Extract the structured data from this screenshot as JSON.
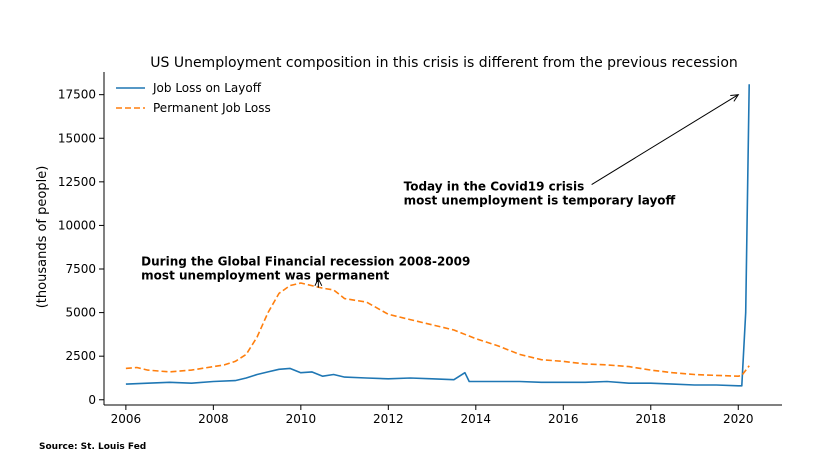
{
  "chart_data": {
    "type": "line",
    "title": "US Unemployment composition in this crisis is different from the previous recession",
    "xlabel": "",
    "ylabel": "(thousands of people)",
    "xlim": [
      2005.5,
      2021.0
    ],
    "ylim": [
      -300,
      18800
    ],
    "xticks": [
      "2006",
      "2008",
      "2010",
      "2012",
      "2014",
      "2016",
      "2018",
      "2020"
    ],
    "yticks": [
      "0",
      "2500",
      "5000",
      "7500",
      "10000",
      "12500",
      "15000",
      "17500"
    ],
    "legend_position": "top-left",
    "series": [
      {
        "name": "Job Loss on Layoff",
        "color": "#1f77b4",
        "style": "solid",
        "x": [
          2006.0,
          2006.5,
          2007.0,
          2007.5,
          2008.0,
          2008.5,
          2008.75,
          2009.0,
          2009.25,
          2009.5,
          2009.75,
          2010.0,
          2010.25,
          2010.5,
          2010.75,
          2011.0,
          2011.5,
          2012.0,
          2012.5,
          2013.0,
          2013.5,
          2013.75,
          2013.85,
          2014.0,
          2014.5,
          2015.0,
          2015.5,
          2016.0,
          2016.5,
          2017.0,
          2017.5,
          2018.0,
          2018.5,
          2019.0,
          2019.5,
          2020.0,
          2020.08,
          2020.17,
          2020.25
        ],
        "y": [
          900,
          950,
          1000,
          950,
          1050,
          1100,
          1250,
          1450,
          1600,
          1750,
          1800,
          1550,
          1600,
          1350,
          1450,
          1300,
          1250,
          1200,
          1250,
          1200,
          1150,
          1550,
          1050,
          1050,
          1050,
          1050,
          1000,
          1000,
          1000,
          1050,
          950,
          950,
          900,
          850,
          850,
          800,
          800,
          5000,
          18100
        ]
      },
      {
        "name": "Permanent Job Loss",
        "color": "#ff7f0e",
        "style": "dashed",
        "x": [
          2006.0,
          2006.25,
          2006.5,
          2007.0,
          2007.5,
          2008.0,
          2008.25,
          2008.5,
          2008.75,
          2009.0,
          2009.25,
          2009.5,
          2009.75,
          2010.0,
          2010.25,
          2010.5,
          2010.75,
          2011.0,
          2011.5,
          2012.0,
          2012.5,
          2013.0,
          2013.5,
          2014.0,
          2014.5,
          2015.0,
          2015.5,
          2016.0,
          2016.5,
          2017.0,
          2017.5,
          2018.0,
          2018.5,
          2019.0,
          2019.5,
          2020.0,
          2020.08,
          2020.25
        ],
        "y": [
          1800,
          1850,
          1700,
          1600,
          1700,
          1900,
          2000,
          2200,
          2600,
          3600,
          5000,
          6100,
          6550,
          6700,
          6550,
          6400,
          6300,
          5800,
          5600,
          4900,
          4600,
          4300,
          4000,
          3500,
          3100,
          2600,
          2300,
          2200,
          2050,
          2000,
          1900,
          1700,
          1550,
          1450,
          1400,
          1350,
          1400,
          1950
        ]
      }
    ],
    "annotations": [
      {
        "text": "Today in the Covid19 crisis\nmost unemployment is temporary layoff",
        "bold": true,
        "text_at": [
          2012.35,
          12000
        ],
        "arrow_to": [
          2020.0,
          17500
        ]
      },
      {
        "text": "During the Global Financial recession 2008-2009\nmost unemployment was permanent",
        "bold": true,
        "text_at": [
          2006.35,
          7700
        ],
        "arrow_to": [
          2010.4,
          6950
        ]
      }
    ]
  },
  "source": "Source: St. Louis Fed"
}
